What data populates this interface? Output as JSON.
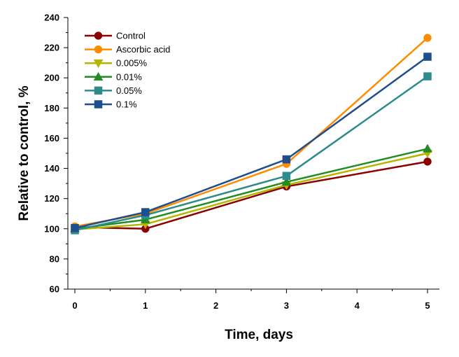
{
  "chart_data": {
    "type": "line",
    "xlabel": "Time, days",
    "ylabel": "Relative to control, %",
    "xlim": [
      0,
      5
    ],
    "ylim": [
      60,
      240
    ],
    "x_ticks": [
      "0",
      "1",
      "2",
      "3",
      "4",
      "5"
    ],
    "y_ticks": [
      "60",
      "80",
      "100",
      "120",
      "140",
      "160",
      "180",
      "200",
      "220",
      "240"
    ],
    "x": [
      0,
      1,
      3,
      5
    ],
    "grid": false,
    "legend_position": "top-left",
    "series": [
      {
        "name": "Control",
        "color": "#8B0000",
        "marker": "circle",
        "values": [
          101,
          100,
          128,
          144.5
        ]
      },
      {
        "name": "Ascorbic acid",
        "color": "#FF8C00",
        "marker": "circle",
        "values": [
          101.5,
          110,
          143,
          226.5
        ]
      },
      {
        "name": "0.005%",
        "color": "#B5B500",
        "marker": "triangle-down",
        "values": [
          99.5,
          103,
          129,
          150
        ]
      },
      {
        "name": "0.01%",
        "color": "#228B22",
        "marker": "triangle-up",
        "values": [
          100,
          106,
          131,
          153
        ]
      },
      {
        "name": "0.05%",
        "color": "#2E8B8B",
        "marker": "square",
        "values": [
          99,
          109,
          135,
          201
        ]
      },
      {
        "name": "0.1%",
        "color": "#1F4E8C",
        "marker": "square",
        "values": [
          100.5,
          111,
          146,
          214
        ]
      }
    ]
  }
}
